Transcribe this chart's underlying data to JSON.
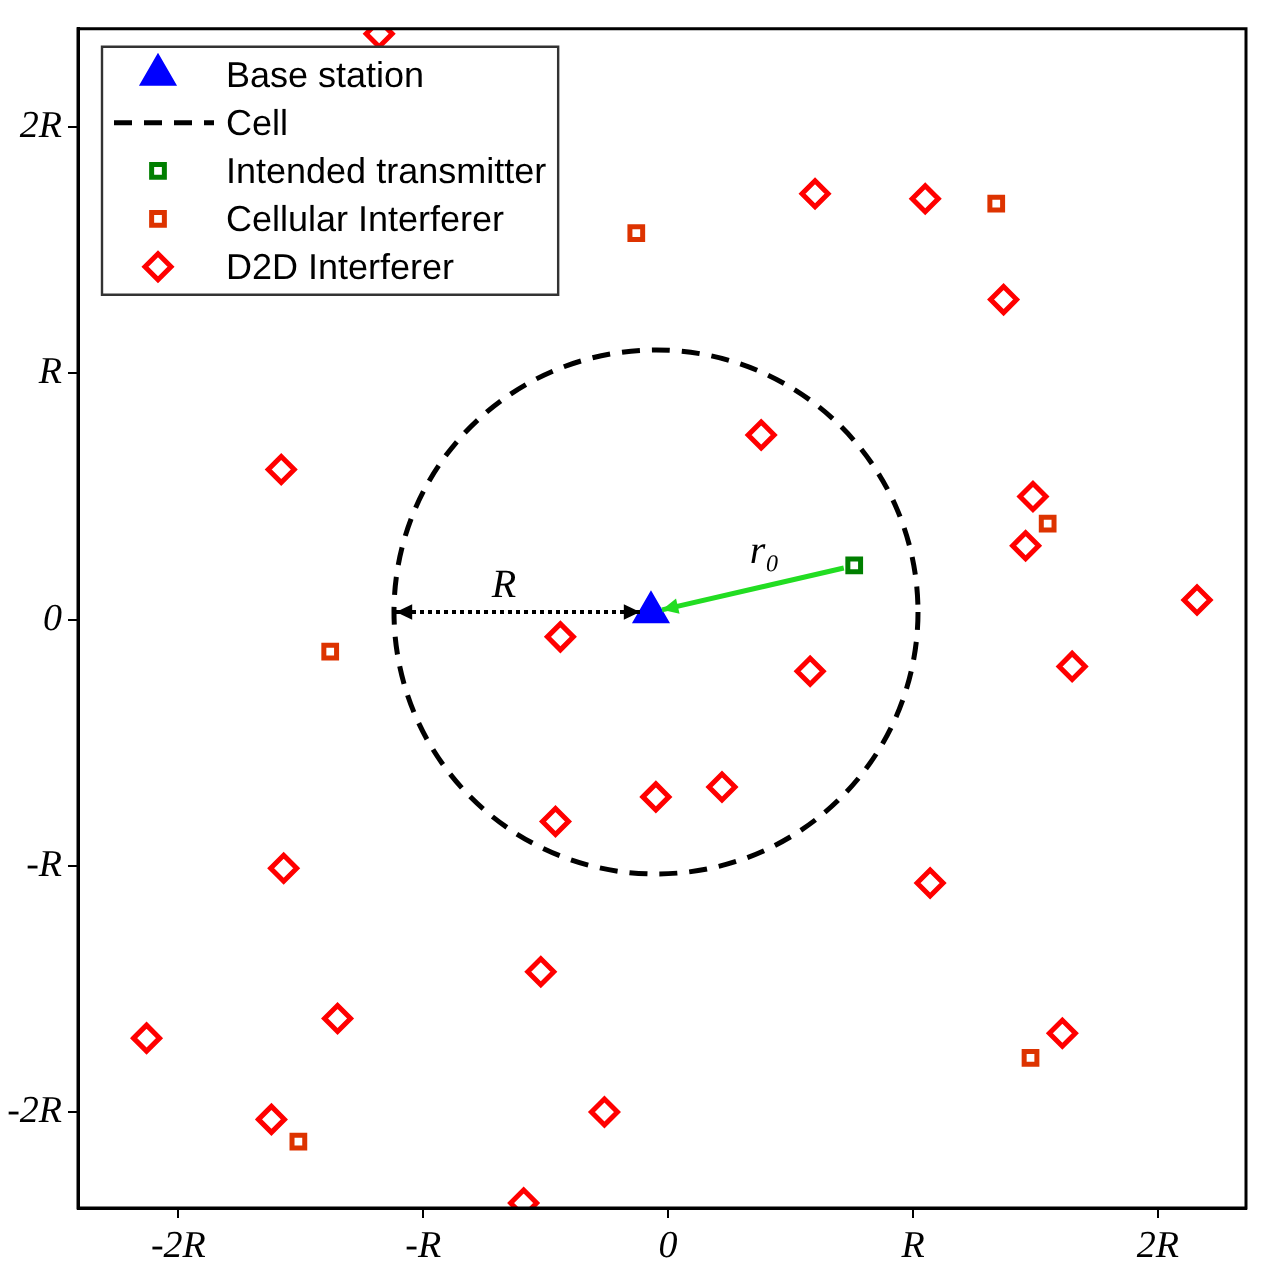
{
  "chart_data": {
    "type": "scatter",
    "xlim": [
      -2.41,
      2.36
    ],
    "ylim": [
      -2.39,
      2.4
    ],
    "xticks": [
      {
        "value": -2,
        "label": "-2R"
      },
      {
        "value": -1,
        "label": "-R"
      },
      0,
      {
        "value": 1,
        "label": "R"
      },
      {
        "value": 2,
        "label": "2R"
      }
    ],
    "yticks": [
      {
        "value": -2,
        "label": "-2R"
      },
      {
        "value": -1,
        "label": "-R"
      },
      0,
      {
        "value": 1,
        "label": "R"
      },
      {
        "value": 2,
        "label": "2R"
      }
    ],
    "grid": false,
    "legend": "top left",
    "annotations": [
      "R",
      "r₀"
    ],
    "series": [
      {
        "name": "Base station",
        "color": "#0000ff",
        "marker": "triangle",
        "x": [
          -0.07
        ],
        "values": [
          0.03
        ]
      },
      {
        "name": "Cell",
        "type": "line",
        "color": "#000000",
        "marker": "none",
        "line_style": "dashed"
      },
      {
        "name": "Intended transmitter",
        "color": "#007f00",
        "marker": "square",
        "x": [
          0.76
        ],
        "values": [
          0.22
        ]
      },
      {
        "name": "Cellular Interferer",
        "color": "#dd3300",
        "marker": "square",
        "x": [
          -0.13,
          1.34,
          1.55,
          -1.38,
          -1.51,
          1.48
        ],
        "values": [
          1.57,
          1.69,
          0.39,
          -0.13,
          -2.12,
          -1.78
        ]
      },
      {
        "name": "D2D Interferer",
        "color": "#ff0000",
        "marker": "diamond",
        "x": [
          -1.18,
          0.6,
          1.05,
          1.37,
          0.38,
          -1.58,
          1.49,
          1.46,
          2.16,
          -0.44,
          0.58,
          1.65,
          -0.05,
          0.22,
          -0.46,
          -1.57,
          1.07,
          -0.52,
          -1.35,
          -2.13,
          1.61,
          -0.26,
          -1.62,
          -0.59
        ],
        "values": [
          2.38,
          1.73,
          1.71,
          1.3,
          0.75,
          0.61,
          0.5,
          0.3,
          0.08,
          -0.07,
          -0.21,
          -0.19,
          -0.72,
          -0.68,
          -0.82,
          -1.01,
          -1.07,
          -1.43,
          -1.62,
          -1.7,
          -1.68,
          -2.0,
          -2.03,
          -2.37
        ]
      }
    ]
  }
}
